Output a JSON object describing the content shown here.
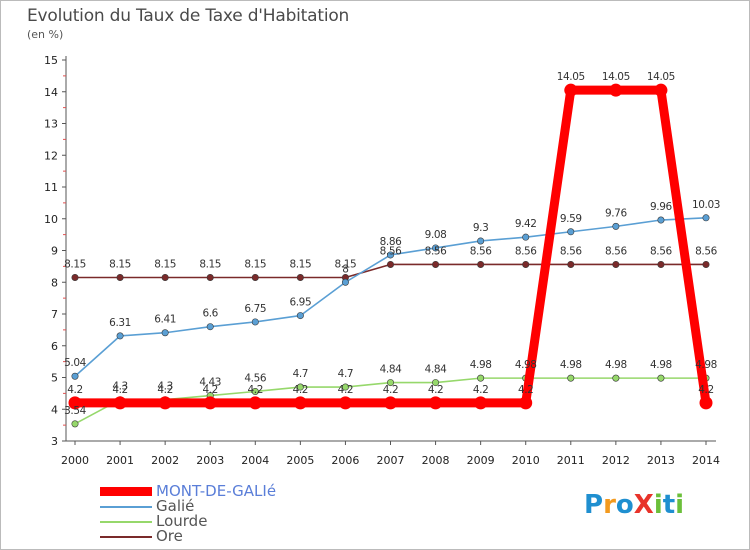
{
  "title": "Evolution du Taux de Taxe d'Habitation",
  "subtitle": "(en %)",
  "logo_text": "ProXiti",
  "logo_colors": [
    "#1f8fd0",
    "#f39a1e",
    "#1f8fd0",
    "#e8332a",
    "#6bbf3a",
    "#1f8fd0",
    "#6bbf3a"
  ],
  "chart_data": {
    "type": "line",
    "title": "Evolution du Taux de Taxe d'Habitation",
    "ylabel": "(en %)",
    "xlabel": "",
    "x": [
      2000,
      2001,
      2002,
      2003,
      2004,
      2005,
      2006,
      2007,
      2008,
      2009,
      2010,
      2011,
      2012,
      2013,
      2014
    ],
    "ylim": [
      3,
      15
    ],
    "yticks": [
      3,
      4,
      5,
      6,
      7,
      8,
      9,
      10,
      11,
      12,
      13,
      14,
      15
    ],
    "grid": false,
    "legend_position": "bottom-left",
    "series": [
      {
        "name": "MONT-DE-GALIé",
        "color": "#ff0000",
        "values": [
          4.2,
          4.2,
          4.2,
          4.2,
          4.2,
          4.2,
          4.2,
          4.2,
          4.2,
          4.2,
          4.2,
          14.05,
          14.05,
          14.05,
          4.2
        ],
        "labels": [
          "4.2",
          "4.2",
          "4.2",
          "4.2",
          "4.2",
          "4.2",
          "4.2",
          "4.2",
          "4.2",
          "4.2",
          "4.2",
          "14.05",
          "14.05",
          "14.05",
          "4.2"
        ]
      },
      {
        "name": "Galié",
        "color": "#5a9fd4",
        "values": [
          5.04,
          6.31,
          6.41,
          6.6,
          6.75,
          6.95,
          8.0,
          8.86,
          9.08,
          9.3,
          9.42,
          9.59,
          9.76,
          9.96,
          10.03
        ],
        "labels": [
          "5.04",
          "6.31",
          "6.41",
          "6.6",
          "6.75",
          "6.95",
          "8",
          "8.86",
          "9.08",
          "9.3",
          "9.42",
          "9.59",
          "9.76",
          "9.96",
          "10.03"
        ]
      },
      {
        "name": "Lourde",
        "color": "#96d86b",
        "values": [
          3.54,
          4.3,
          4.3,
          4.43,
          4.56,
          4.7,
          4.7,
          4.84,
          4.84,
          4.98,
          4.98,
          4.98,
          4.98,
          4.98,
          4.98
        ],
        "labels": [
          "3.54",
          "4.3",
          "4.3",
          "4.43",
          "4.56",
          "4.7",
          "4.7",
          "4.84",
          "4.84",
          "4.98",
          "4.98",
          "4.98",
          "4.98",
          "4.98",
          "4.98"
        ]
      },
      {
        "name": "Ore",
        "color": "#7a2a2a",
        "values": [
          8.15,
          8.15,
          8.15,
          8.15,
          8.15,
          8.15,
          8.15,
          8.56,
          8.56,
          8.56,
          8.56,
          8.56,
          8.56,
          8.56,
          8.56
        ],
        "labels": [
          "8.15",
          "8.15",
          "8.15",
          "8.15",
          "8.15",
          "8.15",
          "8.15",
          "8.56",
          "8.56",
          "8.56",
          "8.56",
          "8.56",
          "8.56",
          "8.56",
          "8.56"
        ]
      }
    ]
  }
}
